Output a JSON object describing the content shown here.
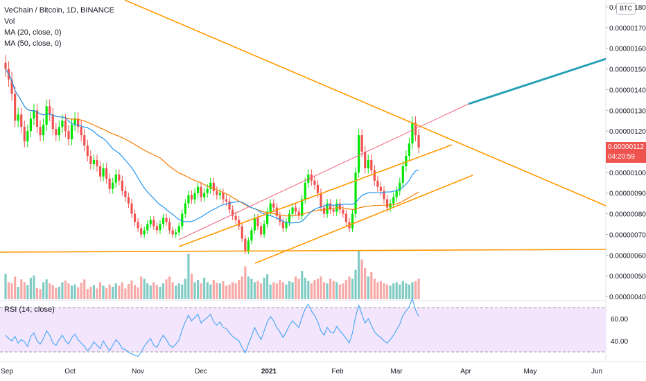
{
  "legend": {
    "symbol": "VeChain / Bitcoin, 1D, BINANCE",
    "vol": "Vol",
    "ma20": "MA (20, close, 0)",
    "ma50": "MA (50, close, 0)",
    "rsi": "RSI (14, close)"
  },
  "currency_badge": "BTC",
  "last_price": {
    "value": "0.00000112",
    "countdown": "04:20:59"
  },
  "colors": {
    "up": "#26a69a",
    "candle_up": "#00e600",
    "down": "#ef5350",
    "ma20": "#2196f3",
    "ma50": "#f57c00",
    "trend": "#ff9800",
    "projection": "#26a0b5",
    "channel_top": "#f0627a",
    "rsi_line": "#42a5f5",
    "rsi_band": "#f3e5fc"
  },
  "chart_data": {
    "type": "candlestick",
    "y_ticks": [
      "0.00000180",
      "0.00000170",
      "0.00000160",
      "0.00000150",
      "0.00000140",
      "0.00000130",
      "0.00000120",
      "0.00000100",
      "0.00000090",
      "0.00000080",
      "0.00000070",
      "0.00000060",
      "0.00000050",
      "0.00000040"
    ],
    "ylim": [
      4e-07,
      1.8e-06
    ],
    "x_ticks": [
      "Sep",
      "Oct",
      "Nov",
      "Dec",
      "2021",
      "Feb",
      "Mar",
      "Apr",
      "May",
      "Jun"
    ],
    "rsi_ticks": [
      "60.00",
      "40.00"
    ],
    "close": [
      1.5e-06,
      1.45e-06,
      1.38e-06,
      1.25e-06,
      1.28e-06,
      1.22e-06,
      1.15e-06,
      1.2e-06,
      1.26e-06,
      1.3e-06,
      1.22e-06,
      1.18e-06,
      1.23e-06,
      1.32e-06,
      1.28e-06,
      1.21e-06,
      1.18e-06,
      1.22e-06,
      1.25e-06,
      1.2e-06,
      1.16e-06,
      1.23e-06,
      1.26e-06,
      1.22e-06,
      1.18e-06,
      1.13e-06,
      1.08e-06,
      1.04e-06,
      1.06e-06,
      1.03e-06,
      9.8e-07,
      1.02e-06,
      9.7e-07,
      9.2e-07,
      9.5e-07,
      9.9e-07,
      9.6e-07,
      9.1e-07,
      8.8e-07,
      8.5e-07,
      8e-07,
      7.6e-07,
      7.3e-07,
      7e-07,
      7.2e-07,
      7.5e-07,
      7.7e-07,
      7.4e-07,
      7.2e-07,
      7.5e-07,
      7.8e-07,
      7.6e-07,
      7.2e-07,
      7e-07,
      7.1e-07,
      7.4e-07,
      8e-07,
      8.5e-07,
      8.9e-07,
      8.7e-07,
      9e-07,
      9.3e-07,
      8.8e-07,
      9e-07,
      9.2e-07,
      9.5e-07,
      9.1e-07,
      8.9e-07,
      9e-07,
      8.7e-07,
      8.6e-07,
      8.2e-07,
      7.9e-07,
      7.7e-07,
      7.4e-07,
      6.8e-07,
      6.2e-07,
      6.7e-07,
      7.2e-07,
      7.8e-07,
      7.4e-07,
      7e-07,
      7.5e-07,
      8.1e-07,
      8.5e-07,
      8.3e-07,
      7.9e-07,
      7.6e-07,
      7.3e-07,
      7.6e-07,
      8e-07,
      8.3e-07,
      8.1e-07,
      7.9e-07,
      8.7e-07,
      9.5e-07,
      9.9e-07,
      9.6e-07,
      9.4e-07,
      9e-07,
      8.3e-07,
      8e-07,
      8.5e-07,
      8.2e-07,
      8.1e-07,
      8.5e-07,
      8.2e-07,
      8e-07,
      7.6e-07,
      7.3e-07,
      8e-07,
      1e-06,
      1.18e-06,
      1.1e-06,
      1.02e-06,
      1.06e-06,
      1.01e-06,
      9.6e-07,
      9.3e-07,
      9.1e-07,
      8.7e-07,
      8.3e-07,
      8.5e-07,
      8.8e-07,
      9.1e-07,
      9.5e-07,
      1.03e-06,
      1.08e-06,
      1.14e-06,
      1.24e-06,
      1.18e-06,
      1.12e-06
    ],
    "volume": [
      45,
      30,
      28,
      40,
      22,
      35,
      30,
      25,
      38,
      42,
      20,
      18,
      30,
      35,
      28,
      25,
      20,
      22,
      30,
      33,
      28,
      24,
      26,
      21,
      29,
      35,
      18,
      22,
      25,
      19,
      30,
      24,
      20,
      26,
      22,
      28,
      24,
      30,
      19,
      27,
      33,
      25,
      21,
      40,
      36,
      28,
      24,
      30,
      25,
      22,
      28,
      35,
      40,
      30,
      24,
      28,
      26,
      36,
      80,
      45,
      30,
      34,
      28,
      38,
      30,
      26,
      34,
      29,
      28,
      32,
      24,
      26,
      30,
      28,
      34,
      40,
      58,
      40,
      36,
      30,
      32,
      28,
      38,
      44,
      26,
      30,
      28,
      34,
      30,
      26,
      32,
      30,
      40,
      36,
      50,
      38,
      32,
      28,
      34,
      36,
      40,
      30,
      28,
      36,
      32,
      30,
      26,
      28,
      34,
      40,
      36,
      52,
      85,
      70,
      55,
      40,
      48,
      36,
      30,
      32,
      28,
      26,
      24,
      28,
      30,
      26,
      32,
      28,
      26,
      30,
      32,
      36
    ],
    "rsi": [
      45,
      42,
      40,
      44,
      38,
      41,
      39,
      35,
      44,
      47,
      40,
      37,
      42,
      49,
      45,
      38,
      36,
      41,
      45,
      40,
      37,
      43,
      46,
      41,
      38,
      35,
      31,
      34,
      39,
      36,
      33,
      40,
      35,
      31,
      36,
      41,
      38,
      33,
      32,
      30,
      28,
      27,
      26,
      30,
      35,
      39,
      42,
      36,
      34,
      40,
      45,
      41,
      36,
      34,
      37,
      41,
      50,
      57,
      63,
      58,
      61,
      64,
      56,
      59,
      61,
      64,
      57,
      54,
      57,
      52,
      51,
      47,
      44,
      42,
      40,
      34,
      29,
      37,
      44,
      52,
      46,
      41,
      49,
      57,
      62,
      58,
      52,
      48,
      43,
      48,
      54,
      58,
      55,
      52,
      61,
      69,
      73,
      67,
      63,
      57,
      49,
      45,
      52,
      48,
      47,
      53,
      49,
      46,
      42,
      38,
      47,
      62,
      72,
      64,
      56,
      60,
      54,
      48,
      45,
      43,
      40,
      38,
      41,
      45,
      50,
      55,
      63,
      67,
      71,
      78,
      68,
      62
    ]
  }
}
